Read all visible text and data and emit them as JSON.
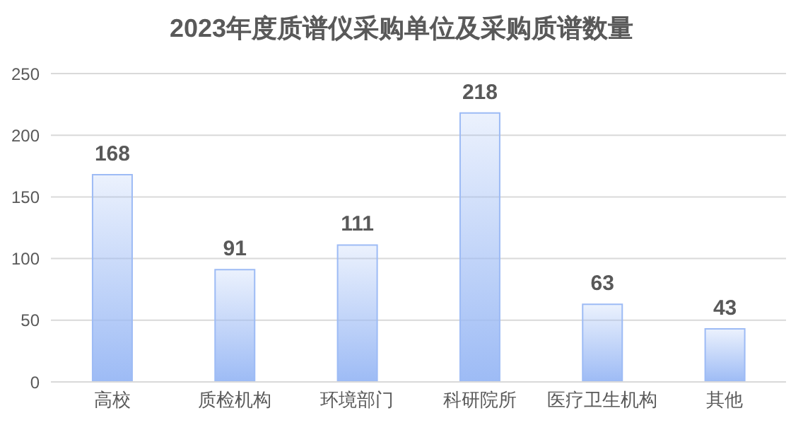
{
  "chart_data": {
    "type": "bar",
    "title": "2023年度质谱仪采购单位及采购质谱数量",
    "categories": [
      "高校",
      "质检机构",
      "环境部门",
      "科研院所",
      "医疗卫生机构",
      "其他"
    ],
    "values": [
      168,
      91,
      111,
      218,
      63,
      43
    ],
    "color": "#9dbbf5",
    "ylim": [
      0,
      250
    ],
    "yticks": [
      0,
      50,
      100,
      150,
      200,
      250
    ],
    "grid": "y",
    "data_labels": true
  }
}
